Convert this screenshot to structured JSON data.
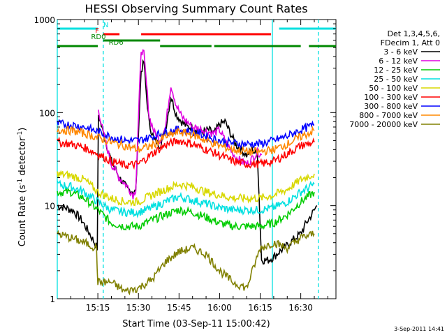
{
  "chart_data": {
    "type": "line",
    "title": "HESSI Observing Summary Count Rates",
    "xlabel": "Start Time (03-Sep-11 15:00:42)",
    "ylabel_main": "Count Rate (s",
    "ylabel_sup1": "-1",
    "ylabel_mid": " detector",
    "ylabel_sup2": "-1",
    "ylabel_end": ")",
    "yscale": "log",
    "ylim": [
      1,
      1000
    ],
    "xlim_minutes": [
      0,
      103
    ],
    "x_ticks": [
      {
        "min": 15,
        "label": "15:15"
      },
      {
        "min": 30,
        "label": "15:30"
      },
      {
        "min": 45,
        "label": "15:45"
      },
      {
        "min": 60,
        "label": "16:00"
      },
      {
        "min": 75,
        "label": "16:15"
      },
      {
        "min": 90,
        "label": "16:30"
      }
    ],
    "y_ticks": [
      {
        "value": 1,
        "label": "1"
      },
      {
        "value": 10,
        "label": "10"
      },
      {
        "value": 100,
        "label": "100"
      },
      {
        "value": 1000,
        "label": "1000"
      }
    ],
    "legend_header": [
      "Det 1,3,4,5,6,",
      "FDecim 1, Att 0"
    ],
    "series": [
      {
        "name": "3 - 6 keV",
        "color": "#000000",
        "x": [
          0,
          3,
          6,
          9,
          12,
          14.8,
          15.2,
          17,
          20,
          23,
          26,
          29,
          31,
          32,
          33,
          34,
          36,
          38,
          40,
          42,
          44,
          46,
          48,
          50,
          52,
          54,
          56,
          58,
          60,
          62,
          64,
          66,
          68,
          70,
          72,
          74,
          75.5,
          78,
          80,
          82,
          84,
          86,
          88,
          90,
          92,
          94,
          96
        ],
        "y": [
          10,
          9.5,
          8.8,
          7,
          5,
          3.5,
          95,
          60,
          30,
          20,
          15,
          14,
          280,
          350,
          150,
          75,
          50,
          45,
          65,
          150,
          95,
          80,
          70,
          70,
          65,
          62,
          65,
          60,
          75,
          80,
          60,
          45,
          40,
          35,
          40,
          35,
          2.6,
          2.6,
          2.8,
          3.2,
          3.5,
          4,
          4.5,
          5,
          6.5,
          8,
          10
        ]
      },
      {
        "name": "6 - 12 keV",
        "color": "#e000e0",
        "x": [
          15.2,
          17,
          20,
          23,
          26,
          28,
          29,
          31,
          32,
          33,
          34,
          36,
          38,
          40,
          42,
          44,
          46,
          48,
          50,
          52,
          54,
          56,
          58,
          60,
          62,
          64,
          66,
          68,
          70,
          72,
          74,
          75.5
        ],
        "y": [
          110,
          60,
          28,
          20,
          16,
          13,
          15,
          480,
          420,
          200,
          90,
          60,
          50,
          70,
          200,
          120,
          90,
          80,
          70,
          68,
          65,
          62,
          60,
          65,
          50,
          40,
          33,
          30,
          28,
          32,
          38,
          35
        ]
      },
      {
        "name": "12 - 25 keV",
        "color": "#00cc00",
        "x": [
          0,
          5,
          10,
          15,
          20,
          25,
          30,
          35,
          40,
          45,
          50,
          55,
          60,
          65,
          70,
          75,
          80,
          85,
          90,
          95
        ],
        "y": [
          14,
          14,
          12,
          9,
          6.5,
          6,
          6,
          7,
          8,
          9,
          8.5,
          7.5,
          6.5,
          6,
          6,
          6,
          6.5,
          8,
          11,
          14
        ]
      },
      {
        "name": "25 - 50 keV",
        "color": "#00e0e0",
        "x": [
          0,
          5,
          10,
          15,
          20,
          25,
          30,
          35,
          40,
          45,
          50,
          55,
          60,
          65,
          70,
          75,
          80,
          85,
          90,
          95
        ],
        "y": [
          17,
          16,
          14,
          11,
          9,
          8.5,
          8.5,
          9.5,
          11,
          12.5,
          11.5,
          10.5,
          9.5,
          9,
          9,
          9,
          9.5,
          11,
          14,
          17
        ]
      },
      {
        "name": "50 - 100 keV",
        "color": "#d8d800",
        "x": [
          0,
          5,
          10,
          15,
          20,
          25,
          30,
          35,
          40,
          45,
          50,
          55,
          60,
          65,
          70,
          75,
          80,
          85,
          90,
          95
        ],
        "y": [
          22,
          21,
          19,
          14,
          12,
          11,
          11,
          13,
          15,
          17,
          16,
          14,
          13,
          12,
          12,
          12,
          13,
          15,
          19,
          22
        ]
      },
      {
        "name": "100 - 300 keV",
        "color": "#ff0000",
        "x": [
          0,
          5,
          10,
          15,
          20,
          25,
          30,
          35,
          40,
          45,
          50,
          55,
          60,
          65,
          70,
          75,
          80,
          85,
          90,
          95
        ],
        "y": [
          48,
          46,
          42,
          36,
          30,
          27,
          28,
          36,
          45,
          50,
          46,
          40,
          35,
          30,
          28,
          28,
          30,
          36,
          44,
          48
        ]
      },
      {
        "name": "300 - 800 keV",
        "color": "#0000ff",
        "x": [
          0,
          5,
          10,
          15,
          20,
          25,
          30,
          35,
          40,
          45,
          50,
          55,
          60,
          65,
          70,
          75,
          80,
          85,
          90,
          95
        ],
        "y": [
          76,
          74,
          70,
          62,
          55,
          50,
          50,
          55,
          62,
          66,
          62,
          56,
          50,
          47,
          46,
          46,
          50,
          56,
          65,
          74
        ]
      },
      {
        "name": "800 - 7000 keV",
        "color": "#ff8800",
        "x": [
          0,
          5,
          10,
          15,
          20,
          25,
          30,
          35,
          40,
          45,
          50,
          55,
          60,
          65,
          70,
          75,
          80,
          85,
          90,
          95
        ],
        "y": [
          66,
          64,
          60,
          54,
          48,
          44,
          40,
          44,
          55,
          62,
          58,
          50,
          44,
          40,
          38,
          38,
          40,
          46,
          55,
          64
        ]
      },
      {
        "name": "7000 - 20000 keV",
        "color": "#808000",
        "x": [
          0,
          5,
          10,
          14.5,
          15,
          20,
          25,
          30,
          35,
          40,
          45,
          50,
          55,
          60,
          65,
          70,
          75,
          80,
          85,
          90,
          95
        ],
        "y": [
          5,
          4.5,
          4,
          3.5,
          1.5,
          1.5,
          1.2,
          1.3,
          1.6,
          2.5,
          3.2,
          3.5,
          3,
          2,
          1.5,
          1.3,
          3.5,
          4,
          3.5,
          4.5,
          5
        ]
      }
    ],
    "flag_bars": [
      {
        "label": "N",
        "color": "#00e0e0",
        "row": 0,
        "label_min": 17,
        "segments": [
          [
            0,
            15
          ],
          [
            82,
            103
          ]
        ]
      },
      {
        "label": "F",
        "color": "#ff0000",
        "row": 1,
        "label_min": 14,
        "segments": [
          [
            17,
            23
          ],
          [
            31,
            79
          ]
        ]
      },
      {
        "label": "RD0",
        "color": "#008800",
        "row": 2,
        "label_min": 12.5,
        "segments": [
          [
            17,
            38
          ]
        ]
      },
      {
        "label": "RD6",
        "color": "#008800",
        "row": 3,
        "label_min": 19,
        "segments": [
          [
            0,
            15
          ],
          [
            38,
            57
          ],
          [
            58,
            90
          ],
          [
            93,
            103
          ]
        ]
      }
    ],
    "vlines": [
      {
        "min": 0,
        "style": "solid",
        "color": "#00e0e0"
      },
      {
        "min": 17,
        "style": "dashed",
        "color": "#00e0e0"
      },
      {
        "min": 79.5,
        "style": "solid",
        "color": "#00e0e0"
      },
      {
        "min": 96.5,
        "style": "dashed",
        "color": "#00e0e0"
      }
    ],
    "grid": false,
    "legend_placement": "right"
  },
  "timestamp": "3-Sep-2011 14:41"
}
